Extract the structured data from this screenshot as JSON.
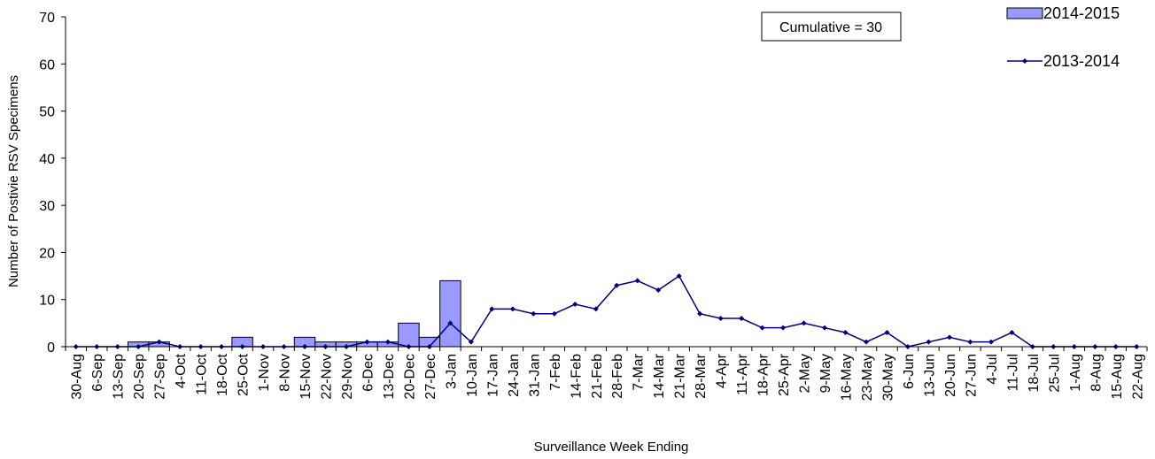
{
  "chart_data": {
    "type": "bar-line",
    "x_label": "Surveillance Week Ending",
    "y_label": "Number of Postivie RSV Specimens",
    "annotation": "Cumulative = 30",
    "categories": [
      "30-Aug",
      "6-Sep",
      "13-Sep",
      "20-Sep",
      "27-Sep",
      "4-Oct",
      "11-Oct",
      "18-Oct",
      "25-Oct",
      "1-Nov",
      "8-Nov",
      "15-Nov",
      "22-Nov",
      "29-Nov",
      "6-Dec",
      "13-Dec",
      "20-Dec",
      "27-Dec",
      "3-Jan",
      "10-Jan",
      "17-Jan",
      "24-Jan",
      "31-Jan",
      "7-Feb",
      "14-Feb",
      "21-Feb",
      "28-Feb",
      "7-Mar",
      "14-Mar",
      "21-Mar",
      "28-Mar",
      "4-Apr",
      "11-Apr",
      "18-Apr",
      "25-Apr",
      "2-May",
      "9-May",
      "16-May",
      "23-May",
      "30-May",
      "6-Jun",
      "13-Jun",
      "20-Jun",
      "27-Jun",
      "4-Jul",
      "11-Jul",
      "18-Jul",
      "25-Jul",
      "1-Aug",
      "8-Aug",
      "15-Aug",
      "22-Aug"
    ],
    "series": [
      {
        "name": "2014-2015",
        "kind": "bar",
        "color": "#9999ff",
        "values": [
          0,
          0,
          0,
          1,
          1,
          0,
          0,
          0,
          2,
          0,
          0,
          2,
          1,
          1,
          1,
          1,
          5,
          2,
          14,
          null,
          null,
          null,
          null,
          null,
          null,
          null,
          null,
          null,
          null,
          null,
          null,
          null,
          null,
          null,
          null,
          null,
          null,
          null,
          null,
          null,
          null,
          null,
          null,
          null,
          null,
          null,
          null,
          null,
          null,
          null,
          null,
          null
        ]
      },
      {
        "name": "2013-2014",
        "kind": "line",
        "color": "#000080",
        "values": [
          0,
          0,
          0,
          0,
          1,
          0,
          0,
          0,
          0,
          0,
          0,
          0,
          0,
          0,
          1,
          1,
          0,
          0,
          5,
          1,
          8,
          8,
          7,
          7,
          9,
          8,
          13,
          14,
          12,
          15,
          7,
          6,
          6,
          4,
          4,
          5,
          4,
          3,
          1,
          3,
          0,
          1,
          2,
          1,
          1,
          3,
          0,
          0,
          0,
          0,
          0,
          0
        ]
      }
    ],
    "ylim": [
      0,
      70
    ],
    "yticks": [
      0,
      10,
      20,
      30,
      40,
      50,
      60,
      70
    ]
  }
}
